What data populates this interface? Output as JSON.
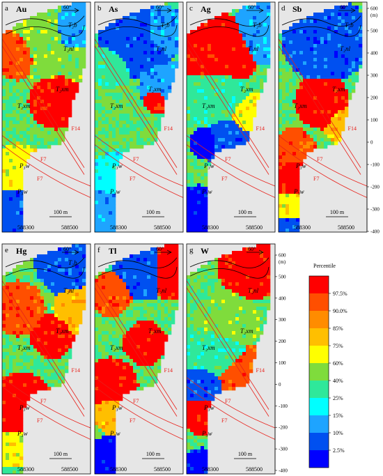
{
  "panels": [
    {
      "letter": "a",
      "element": "Au",
      "variant": 0
    },
    {
      "letter": "b",
      "element": "As",
      "variant": 1
    },
    {
      "letter": "c",
      "element": "Ag",
      "variant": 2
    },
    {
      "letter": "d",
      "element": "Sb",
      "variant": 3
    },
    {
      "letter": "e",
      "element": "Hg",
      "variant": 4
    },
    {
      "letter": "f",
      "element": "Tl",
      "variant": 5
    },
    {
      "letter": "g",
      "element": "W",
      "variant": 6
    }
  ],
  "units": {
    "t2b": "T₂b",
    "t2nl": "T₂nl",
    "t2xm": "T₂xm",
    "p3w": "P₃w"
  },
  "faults": {
    "f14": "F14",
    "f7": "F7"
  },
  "dip": "60°",
  "scale_bar": "100 m",
  "x_coords": [
    "588300",
    "588500"
  ],
  "axis": {
    "unit": "(m)",
    "ticks": [
      "600",
      "500",
      "400",
      "300",
      "200",
      "100",
      "0",
      "-100",
      "-200",
      "-300",
      "-400"
    ]
  },
  "legend": {
    "title": "Percentile",
    "labels": [
      "97.5%",
      "90.0%",
      "85%",
      "75%",
      "60%",
      "40%",
      "25%",
      "15%",
      "10%",
      "2.5%"
    ],
    "colors": [
      "#ff0000",
      "#ff4f00",
      "#ff8c00",
      "#ffbf00",
      "#ffff00",
      "#7fdc3c",
      "#2fe89a",
      "#00ffff",
      "#1ea4ff",
      "#0050f0",
      "#0000ff"
    ]
  }
}
